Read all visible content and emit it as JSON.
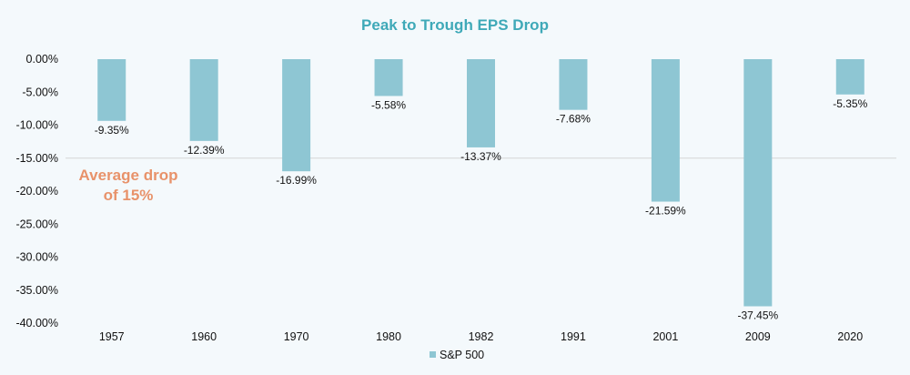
{
  "chart_data": {
    "type": "bar",
    "title": "Peak to Trough EPS Drop",
    "categories": [
      "1957",
      "1960",
      "1970",
      "1980",
      "1982",
      "1991",
      "2001",
      "2009",
      "2020"
    ],
    "series": [
      {
        "name": "S&P 500",
        "values": [
          -9.35,
          -12.39,
          -16.99,
          -5.58,
          -13.37,
          -7.68,
          -21.59,
          -37.45,
          -5.35
        ],
        "data_labels": [
          "-9.35%",
          "-12.39%",
          "-16.99%",
          "-5.58%",
          "-13.37%",
          "-7.68%",
          "-21.59%",
          "-37.45%",
          "-5.35%"
        ]
      }
    ],
    "ylim": [
      -40,
      0
    ],
    "yticks": [
      0,
      -5,
      -10,
      -15,
      -20,
      -25,
      -30,
      -35,
      -40
    ],
    "ytick_labels": [
      "0.00%",
      "-5.00%",
      "-10.00%",
      "-15.00%",
      "-20.00%",
      "-25.00%",
      "-30.00%",
      "-35.00%",
      "-40.00%"
    ],
    "reference_line": {
      "value": -15
    },
    "annotation": {
      "lines": [
        "Average drop",
        "of 15%"
      ]
    },
    "legend": {
      "position": "bottom",
      "entries": [
        "S&P 500"
      ]
    },
    "grid": false
  },
  "colors": {
    "title": "#3fa9b8",
    "bar": "#8ec6d3",
    "annotation": "#e8926a",
    "reference_line": "#d5d5d5",
    "background": "#f4f9fc"
  }
}
